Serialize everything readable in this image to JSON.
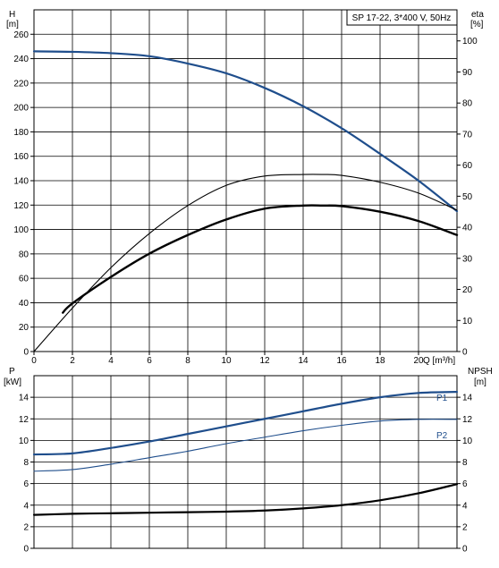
{
  "colors": {
    "background": "#ffffff",
    "grid": "#000000",
    "text": "#000000",
    "head_curve": "#1f4e8c",
    "power_curves": "#1f4e8c",
    "efficiency_curves": "#000000",
    "npsh_curve": "#000000"
  },
  "chart_data": [
    {
      "type": "line",
      "panel": "top",
      "title": "SP 17-22, 3*400 V, 50Hz",
      "xlabel": "Q [m³/h]",
      "ylabel_left": "H",
      "ylabel_left_unit": "[m]",
      "ylabel_right": "eta",
      "ylabel_right_unit": "[%]",
      "xlim": [
        0,
        22
      ],
      "ylim_left": [
        0,
        280
      ],
      "ylim_right": [
        0,
        110
      ],
      "x_ticks": [
        "0",
        "2",
        "4",
        "6",
        "8",
        "10",
        "12",
        "14",
        "16",
        "18",
        "20"
      ],
      "y_left_ticks": [
        "0",
        "20",
        "40",
        "60",
        "80",
        "100",
        "120",
        "140",
        "160",
        "180",
        "200",
        "220",
        "240",
        "260"
      ],
      "y_right_ticks": [
        "0",
        "10",
        "20",
        "30",
        "40",
        "50",
        "60",
        "70",
        "80",
        "90",
        "100"
      ],
      "grid": true,
      "series": [
        {
          "axis": "left",
          "color": "head_curve",
          "width": 2.2,
          "x": [
            0,
            2,
            4,
            6,
            8,
            10,
            12,
            14,
            16,
            18,
            20,
            22
          ],
          "y": [
            246,
            245.6,
            244.5,
            242,
            236,
            228,
            216,
            201,
            183,
            162,
            140,
            115
          ]
        },
        {
          "axis": "right",
          "color": "efficiency_curves",
          "width": 1.1,
          "x": [
            0,
            2,
            4,
            6,
            8,
            10,
            12,
            14,
            15,
            16,
            18,
            20,
            22
          ],
          "y": [
            0,
            14,
            27,
            38,
            47,
            53.5,
            56.5,
            57,
            57,
            56.7,
            54.5,
            51,
            45.5
          ]
        },
        {
          "axis": "right",
          "color": "efficiency_curves",
          "width": 2.4,
          "x": [
            1.5,
            2,
            4,
            6,
            8,
            10,
            12,
            14,
            15,
            16,
            18,
            20,
            22
          ],
          "y": [
            12.5,
            15.5,
            24,
            31.5,
            37.5,
            42.5,
            46,
            47,
            47,
            46.8,
            45,
            42,
            37.5
          ]
        }
      ]
    },
    {
      "type": "line",
      "panel": "bottom",
      "ylabel_left": "P",
      "ylabel_left_unit": "[kW]",
      "ylabel_right": "NPSH",
      "ylabel_right_unit": "[m]",
      "xlim": [
        0,
        22
      ],
      "ylim_left": [
        0,
        16
      ],
      "ylim_right": [
        0,
        16
      ],
      "y_left_ticks": [
        "0",
        "2",
        "4",
        "6",
        "8",
        "10",
        "12",
        "14"
      ],
      "y_right_ticks": [
        "0",
        "2",
        "4",
        "6",
        "8",
        "10",
        "12",
        "14"
      ],
      "grid": true,
      "series": [
        {
          "name": "P1",
          "axis": "left",
          "color": "power_curves",
          "width": 2.2,
          "x": [
            0,
            2,
            4,
            6,
            8,
            10,
            12,
            14,
            16,
            18,
            20,
            22
          ],
          "y": [
            8.7,
            8.8,
            9.3,
            9.9,
            10.6,
            11.3,
            12.0,
            12.7,
            13.4,
            14.0,
            14.4,
            14.5
          ]
        },
        {
          "name": "P2",
          "axis": "left",
          "color": "power_curves",
          "width": 1.1,
          "x": [
            0,
            2,
            4,
            6,
            8,
            10,
            12,
            14,
            16,
            18,
            20,
            22
          ],
          "y": [
            7.15,
            7.3,
            7.8,
            8.4,
            9.0,
            9.7,
            10.3,
            10.9,
            11.4,
            11.8,
            11.95,
            11.95
          ]
        },
        {
          "axis": "right",
          "color": "npsh_curve",
          "width": 2.2,
          "x": [
            0,
            2,
            4,
            6,
            8,
            10,
            12,
            14,
            16,
            18,
            20,
            22
          ],
          "y": [
            3.1,
            3.2,
            3.25,
            3.3,
            3.35,
            3.4,
            3.5,
            3.7,
            4.0,
            4.45,
            5.1,
            5.95
          ]
        }
      ]
    }
  ]
}
